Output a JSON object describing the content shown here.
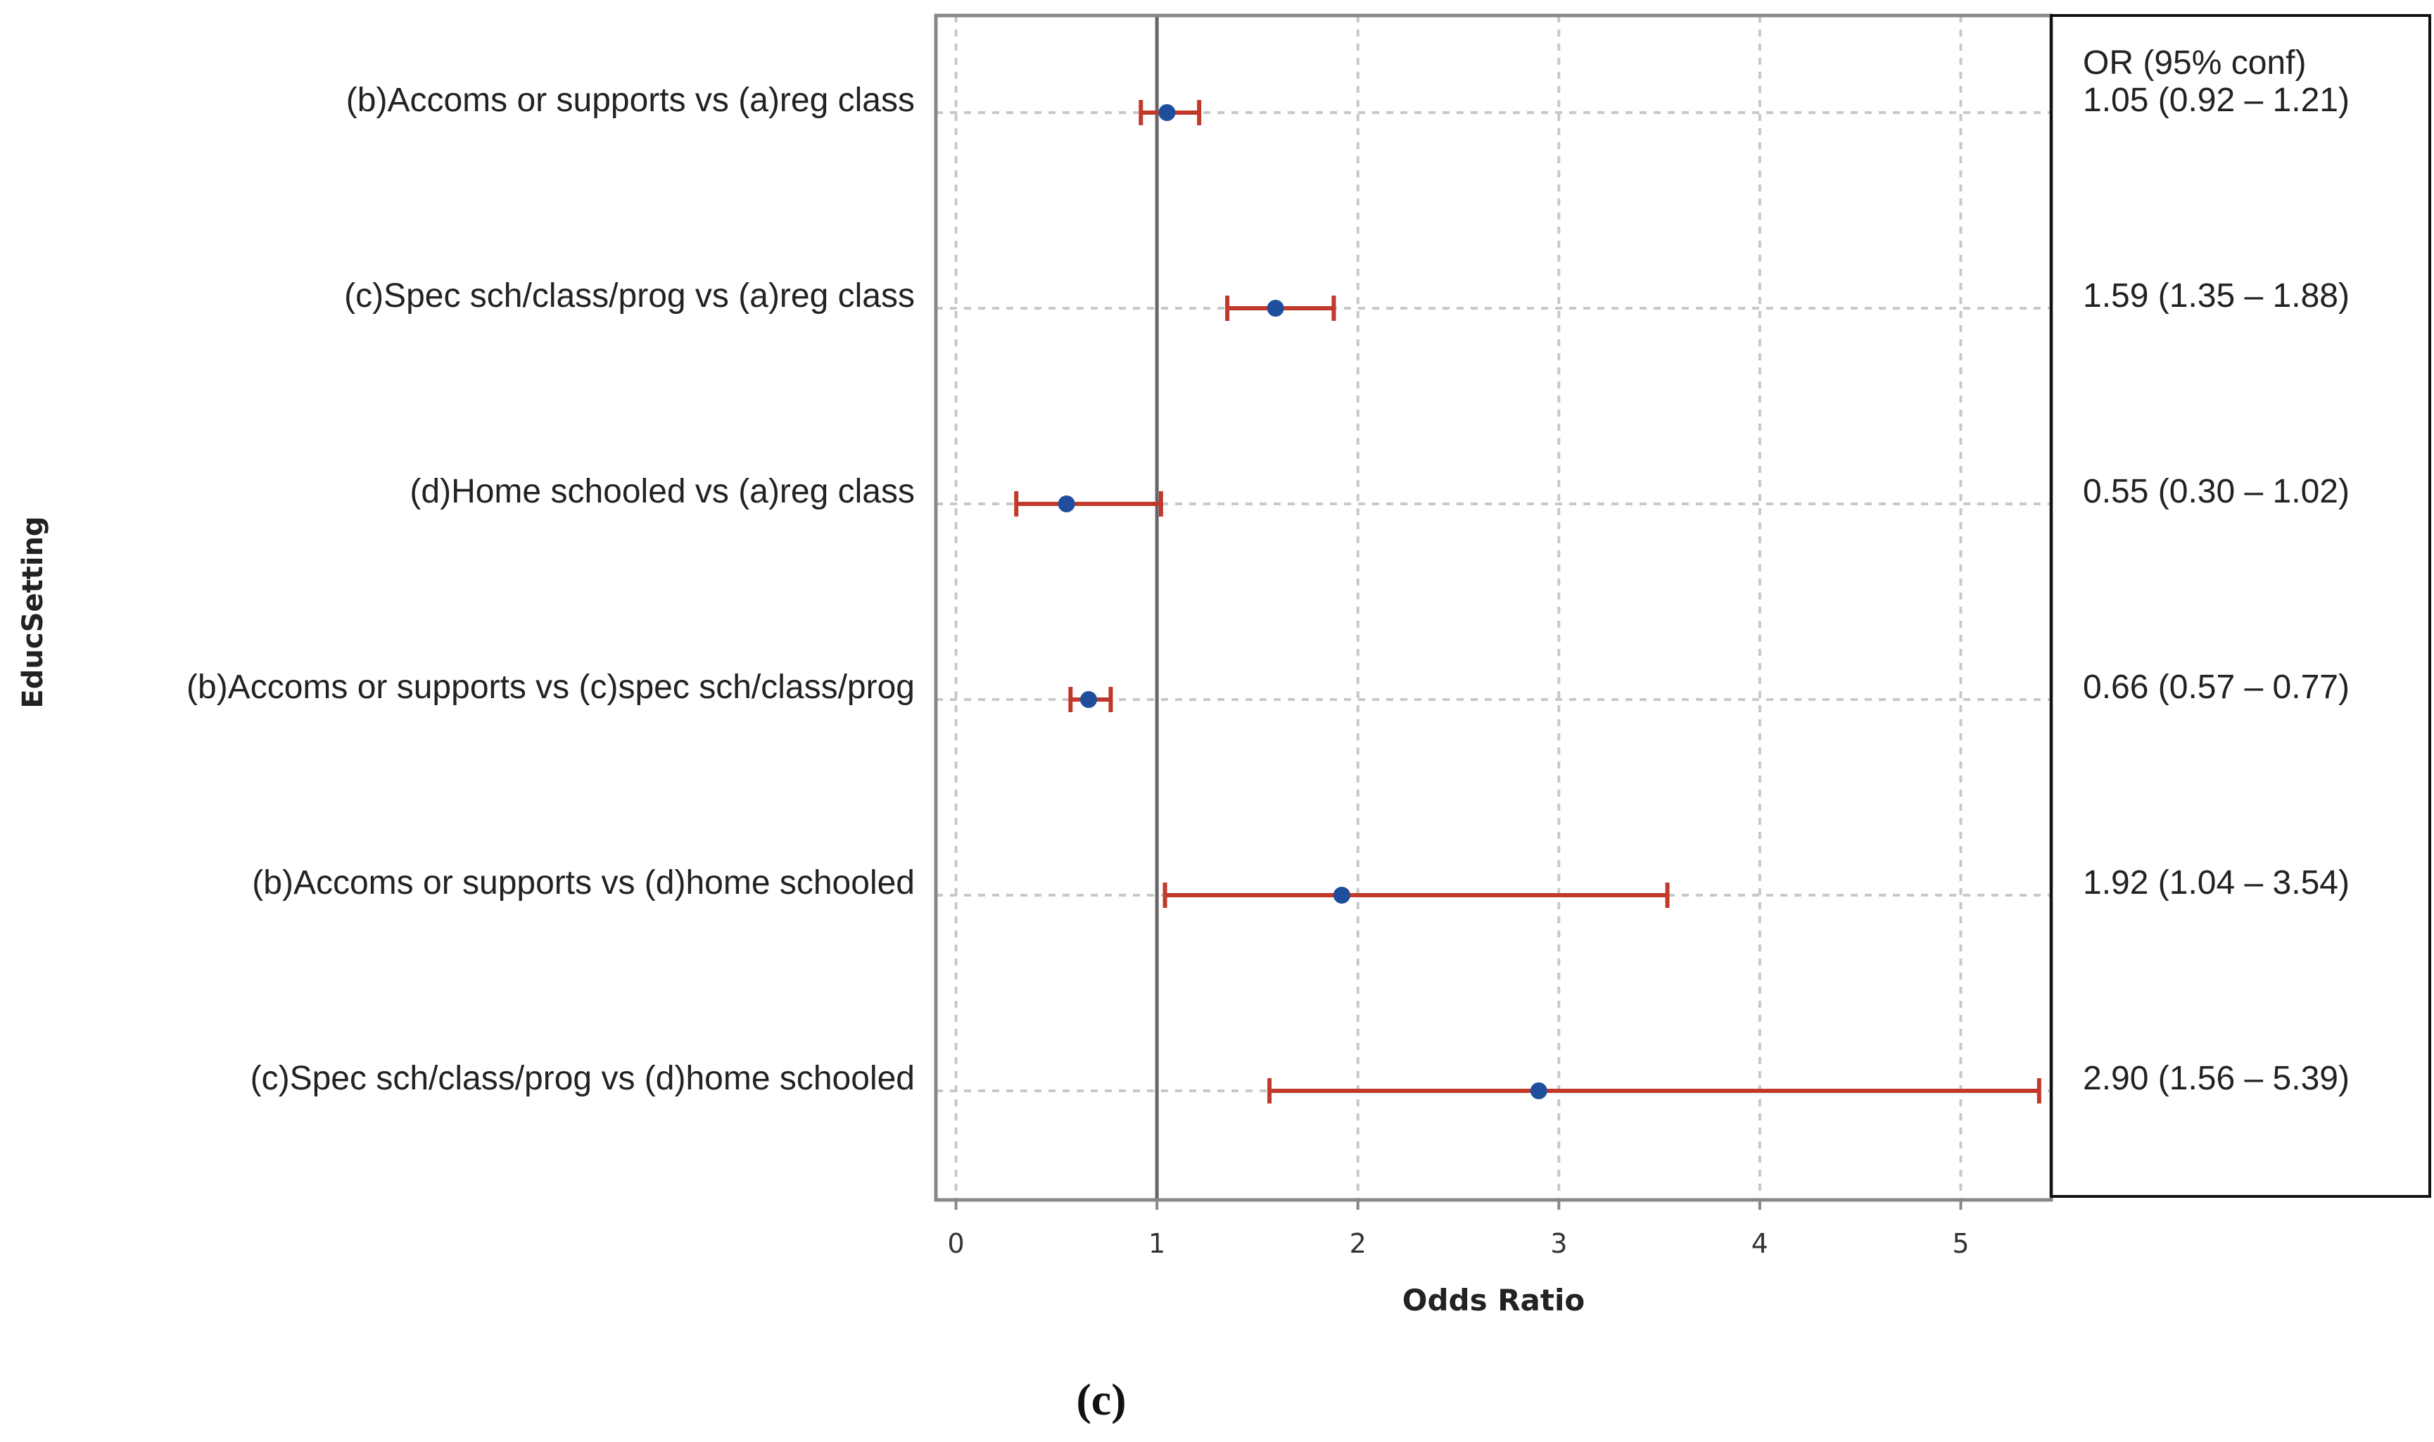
{
  "chart_data": {
    "type": "forest",
    "xlabel": "Odds Ratio",
    "ylabel": "EducSetting",
    "xlim": [
      -0.1,
      5.45
    ],
    "xticks": [
      0,
      1,
      2,
      3,
      4,
      5
    ],
    "xtick_labels": [
      "0",
      "1",
      "2",
      "3",
      "4",
      "5"
    ],
    "reference_line": 1,
    "grid": true,
    "table_header": "OR (95% conf)",
    "panel_label": "(c)",
    "colors": {
      "point": "#1f4e9c",
      "ci": "#c0392b",
      "grid": "#c8c8c8",
      "refline": "#666666",
      "frame": "#888888"
    },
    "rows": [
      {
        "label": "(b)Accoms or supports vs (a)reg class",
        "or": 1.05,
        "lower": 0.92,
        "upper": 1.21,
        "text": "1.05 (0.92 – 1.21)"
      },
      {
        "label": "(c)Spec sch/class/prog vs (a)reg class",
        "or": 1.59,
        "lower": 1.35,
        "upper": 1.88,
        "text": "1.59 (1.35 – 1.88)"
      },
      {
        "label": "(d)Home schooled vs (a)reg class",
        "or": 0.55,
        "lower": 0.3,
        "upper": 1.02,
        "text": "0.55 (0.30 – 1.02)"
      },
      {
        "label": "(b)Accoms or supports vs (c)spec sch/class/prog",
        "or": 0.66,
        "lower": 0.57,
        "upper": 0.77,
        "text": "0.66 (0.57 – 0.77)"
      },
      {
        "label": "(b)Accoms or supports vs (d)home schooled",
        "or": 1.92,
        "lower": 1.04,
        "upper": 3.54,
        "text": "1.92 (1.04 – 3.54)"
      },
      {
        "label": "(c)Spec sch/class/prog vs (d)home schooled",
        "or": 2.9,
        "lower": 1.56,
        "upper": 5.39,
        "text": "2.90 (1.56 – 5.39)"
      }
    ]
  }
}
